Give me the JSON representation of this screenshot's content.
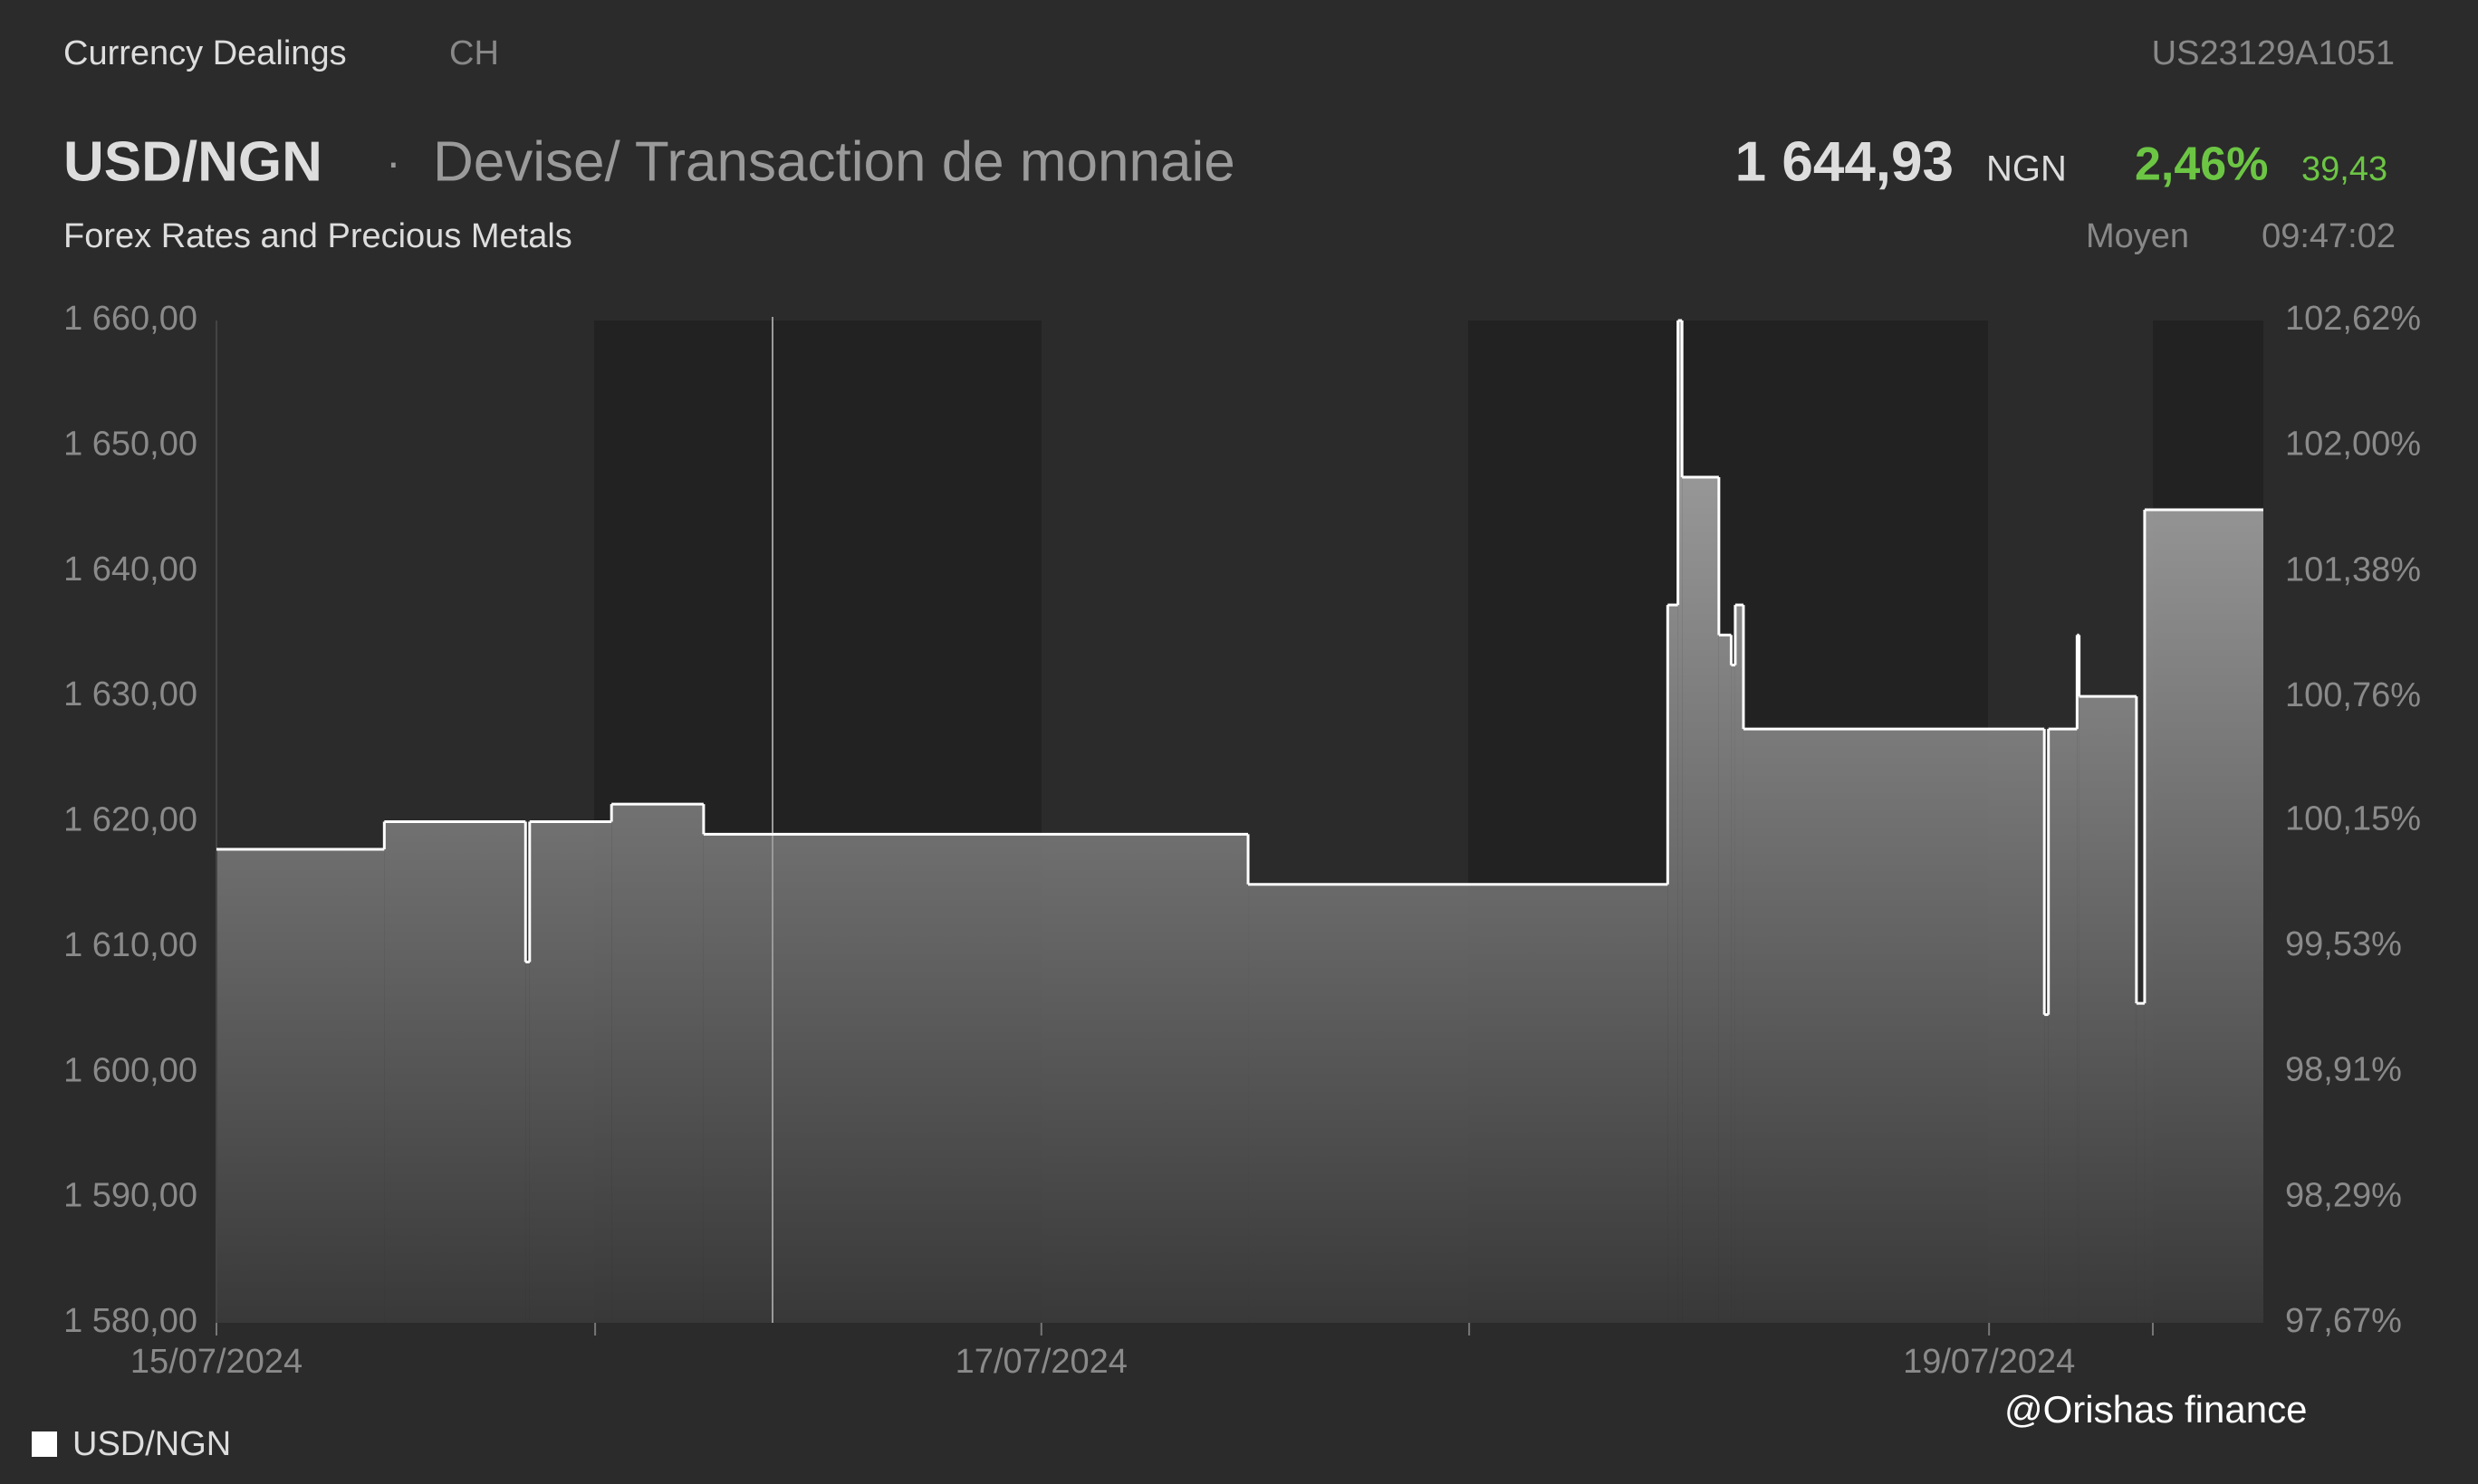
{
  "header": {
    "section": "Currency Dealings",
    "market": "CH",
    "isin": "US23129A1051",
    "pair": "USD/NGN",
    "separator": "·",
    "instrument_type": "Devise/ Transaction de monnaie",
    "price": "1 644,93",
    "currency": "NGN",
    "change_pct": "2,46%",
    "change": "39,43",
    "subtitle": "Forex Rates and Precious Metals",
    "price_type": "Moyen",
    "time": "09:47:02"
  },
  "watermark": "@Orishas finance",
  "chart_data": {
    "type": "area",
    "step": true,
    "series": [
      {
        "name": "USD/NGN",
        "color": "#ffffff",
        "x": [
          0,
          8.2,
          15.1,
          15.3,
          19.3,
          23.8,
          50.4,
          70.9,
          71.4,
          71.6,
          73.4,
          74.0,
          74.2,
          74.6,
          89.3,
          89.5,
          90.9,
          91.0,
          93.8,
          94.2
        ],
        "values": [
          1617.8,
          1620.0,
          1608.8,
          1620.0,
          1621.4,
          1619.0,
          1615.0,
          1637.3,
          1660.0,
          1647.5,
          1634.9,
          1632.5,
          1637.3,
          1627.4,
          1604.6,
          1627.4,
          1634.9,
          1630.0,
          1605.5,
          1644.9
        ]
      }
    ],
    "xlim": [
      0,
      100
    ],
    "xticks": [
      {
        "value": 0,
        "label": "15/07/2024"
      },
      {
        "value": 18.5,
        "label": null
      },
      {
        "value": 40.3,
        "label": "17/07/2024"
      },
      {
        "value": 61.2,
        "label": null
      },
      {
        "value": 86.6,
        "label": "19/07/2024"
      },
      {
        "value": 94.6,
        "label": null
      }
    ],
    "ylim": [
      1580,
      1660
    ],
    "yticks": [
      {
        "value": 1580,
        "label": "1 580,00"
      },
      {
        "value": 1590,
        "label": "1 590,00"
      },
      {
        "value": 1600,
        "label": "1 600,00"
      },
      {
        "value": 1610,
        "label": "1 610,00"
      },
      {
        "value": 1620,
        "label": "1 620,00"
      },
      {
        "value": 1630,
        "label": "1 630,00"
      },
      {
        "value": 1640,
        "label": "1 640,00"
      },
      {
        "value": 1650,
        "label": "1 650,00"
      },
      {
        "value": 1660,
        "label": "1 660,00"
      }
    ],
    "y2lim": [
      97.67,
      102.62
    ],
    "y2ticks": [
      {
        "value": 97.67,
        "label": "97,67%"
      },
      {
        "value": 98.29,
        "label": "98,29%"
      },
      {
        "value": 98.91,
        "label": "98,91%"
      },
      {
        "value": 99.53,
        "label": "99,53%"
      },
      {
        "value": 100.15,
        "label": "100,15%"
      },
      {
        "value": 100.76,
        "label": "100,76%"
      },
      {
        "value": 101.38,
        "label": "101,38%"
      },
      {
        "value": 102.0,
        "label": "102,00%"
      },
      {
        "value": 102.62,
        "label": "102,62%"
      }
    ],
    "legend": "bottom-left"
  }
}
